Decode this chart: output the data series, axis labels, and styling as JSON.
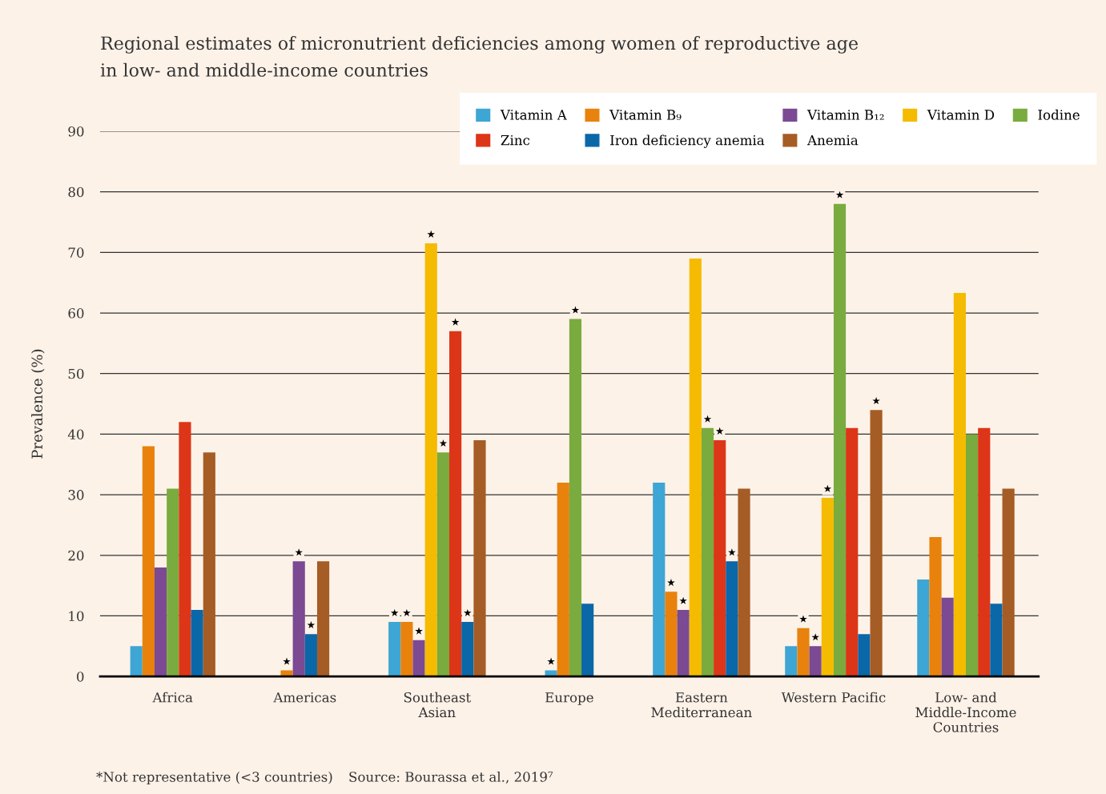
{
  "chart_data": {
    "type": "bar",
    "title": "Regional estimates of micronutrient deficiencies among women of reproductive age\nin low- and middle-income countries",
    "ylabel": "Prevalence (%)",
    "categories": [
      "Africa",
      "Americas",
      "Southeast\nAsian",
      "Europe",
      "Eastern\nMediterranean",
      "Western Pacific",
      "Low- and\nMiddle-Income\nCountries"
    ],
    "series": [
      {
        "name": "Vitamin A",
        "color": "#3ea6d4",
        "values": [
          5,
          null,
          9,
          1,
          32,
          5,
          16
        ],
        "value_labels": [
          null,
          null,
          "★",
          "★",
          null,
          null,
          null
        ]
      },
      {
        "name": "Vitamin B₉",
        "color": "#e8820c",
        "values": [
          38,
          1,
          9,
          32,
          14,
          8,
          23
        ],
        "value_labels": [
          null,
          "★",
          "★",
          null,
          "★",
          "★",
          null
        ]
      },
      {
        "name": "Vitamin B₁₂",
        "color": "#7b4a93",
        "values": [
          18,
          19,
          6,
          null,
          11,
          5,
          13
        ],
        "value_labels": [
          null,
          "★",
          "★",
          null,
          "★",
          "★",
          null
        ]
      },
      {
        "name": "Vitamin D",
        "color": "#f5bb00",
        "values": [
          null,
          null,
          71.5,
          null,
          69,
          29.5,
          63.3
        ],
        "value_labels": [
          null,
          null,
          "★",
          null,
          null,
          "★",
          null
        ]
      },
      {
        "name": "Iodine",
        "color": "#7aab3e",
        "values": [
          31,
          null,
          37,
          59,
          41,
          78,
          40
        ],
        "value_labels": [
          null,
          null,
          "★",
          "★",
          "★",
          "★",
          null
        ]
      },
      {
        "name": "Zinc",
        "color": "#dd3518",
        "values": [
          42,
          null,
          57,
          null,
          39,
          41,
          41
        ],
        "value_labels": [
          null,
          null,
          "★",
          null,
          "★",
          null,
          null
        ]
      },
      {
        "name": "Iron deficiency anemia",
        "color": "#0a67a8",
        "values": [
          11,
          7,
          9,
          12,
          19,
          7,
          12
        ],
        "value_labels": [
          null,
          "★",
          "★",
          null,
          "★",
          null,
          null
        ]
      },
      {
        "name": "Anemia",
        "color": "#a65c25",
        "values": [
          37,
          19,
          39,
          null,
          31,
          44,
          31
        ],
        "value_labels": [
          null,
          null,
          null,
          null,
          null,
          "★",
          null
        ]
      }
    ],
    "ylim": [
      0,
      90
    ],
    "yticks": [
      0,
      10,
      20,
      30,
      40,
      50,
      60,
      70,
      80,
      90
    ],
    "grid": "y",
    "legend": "top right",
    "annotations": [
      "*Not representative (<3 countries)",
      "Source: Bourassa et al., 2019⁷"
    ]
  }
}
